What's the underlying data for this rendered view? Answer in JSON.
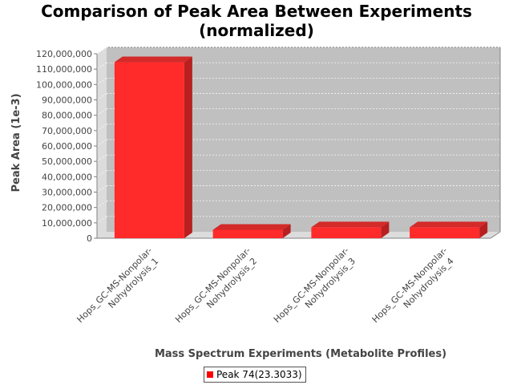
{
  "chart_data": {
    "type": "bar",
    "title": [
      "Comparison of Peak Area Between Experiments",
      "(normalized)"
    ],
    "xlabel": "Mass Spectrum Experiments (Metabolite Profiles)",
    "ylabel": "Peak Area (1e-3)",
    "categories": [
      [
        "Hops_GC-MS-Nonpolar-",
        "Nohydrolysis_1"
      ],
      [
        "Hops_GC-MS-Nonpolar-",
        "Nohydrolysis_2"
      ],
      [
        "Hops_GC-MS-Nonpolar-",
        "Nohydrolysis_3"
      ],
      [
        "Hops_GC-MS-Nonpolar-",
        "Nohydrolysis_4"
      ]
    ],
    "series": [
      {
        "name": "Peak 74(23.3033)",
        "values": [
          114500000,
          5500000,
          7100000,
          7100000
        ]
      }
    ],
    "yticks": [
      "0",
      "10,000,000",
      "20,000,000",
      "30,000,000",
      "40,000,000",
      "50,000,000",
      "60,000,000",
      "70,000,000",
      "80,000,000",
      "90,000,000",
      "100,000,000",
      "110,000,000",
      "120,000,000"
    ],
    "ylim": [
      0,
      120000000
    ],
    "grid": true,
    "legend_position": "bottom",
    "colors": {
      "bar": "#ff2a2a",
      "bar_side": "#b82020",
      "bar_top": "#d32a2a",
      "plot_bg": "#c0c0c0",
      "plot_side": "#dcdcdc"
    }
  }
}
